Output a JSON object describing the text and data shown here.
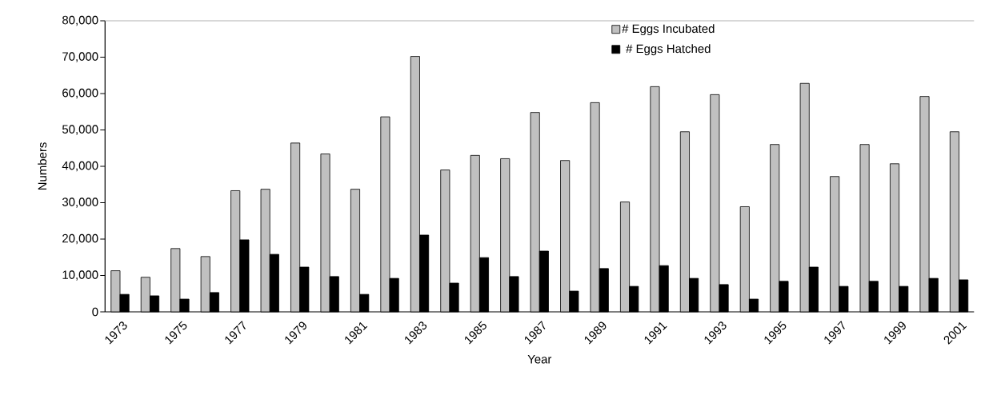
{
  "chart_data": {
    "type": "bar",
    "xlabel": "Year",
    "ylabel": "Numbers",
    "categories": [
      "1973",
      null,
      "1975",
      null,
      "1977",
      null,
      "1979",
      null,
      "1981",
      null,
      "1983",
      null,
      "1985",
      null,
      "1987",
      null,
      "1989",
      null,
      "1991",
      null,
      "1993",
      null,
      "1995",
      null,
      "1997",
      null,
      "1999",
      null,
      "2001"
    ],
    "series": [
      {
        "name": "# Eggs Incubated",
        "color": "#c0c0c0",
        "values": [
          11300,
          9500,
          17400,
          15200,
          33300,
          33700,
          46400,
          43400,
          33700,
          53600,
          70200,
          39000,
          43000,
          42100,
          54800,
          41600,
          57500,
          30200,
          61900,
          49500,
          59700,
          28900,
          46000,
          62800,
          37200,
          46000,
          40700,
          59200,
          49500
        ]
      },
      {
        "name": "# Eggs Hatched",
        "color": "#000000",
        "values": [
          4800,
          4400,
          3500,
          5300,
          19800,
          15800,
          12300,
          9700,
          4800,
          9200,
          21100,
          7900,
          14900,
          9700,
          16700,
          5700,
          11900,
          7000,
          12700,
          9200,
          7500,
          3500,
          8400,
          12300,
          7000,
          8400,
          7000,
          9200,
          8800
        ]
      }
    ],
    "ylim": [
      0,
      80000
    ],
    "yticks": [
      {
        "value": 0,
        "label": "0"
      },
      {
        "value": 10000,
        "label": "10,000"
      },
      {
        "value": 20000,
        "label": "20,000"
      },
      {
        "value": 30000,
        "label": "30,000"
      },
      {
        "value": 40000,
        "label": "40,000"
      },
      {
        "value": 50000,
        "label": "50,000"
      },
      {
        "value": 60000,
        "label": "60,000"
      },
      {
        "value": 70000,
        "label": "70,000"
      },
      {
        "value": 80000,
        "label": "80,000"
      }
    ],
    "grid": false,
    "legend": "top right"
  }
}
